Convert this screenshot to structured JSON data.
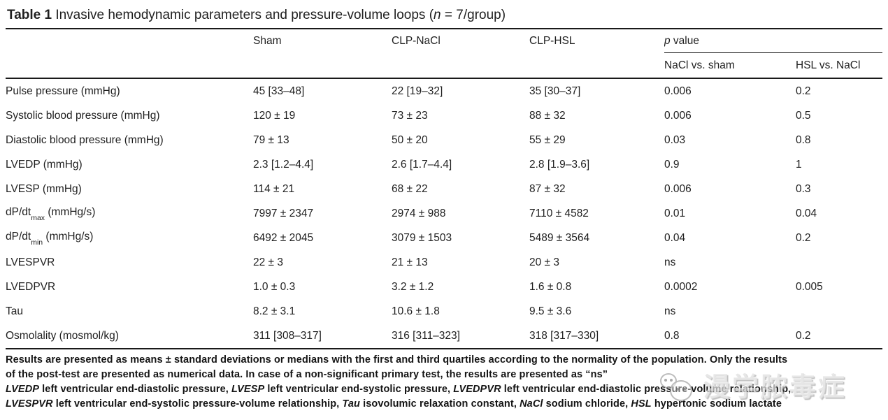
{
  "title": {
    "bold": "Table 1",
    "mid": " Invasive hemodynamic parameters and pressure-volume loops (",
    "n_italic": "n",
    "tail": " = 7/group)"
  },
  "header": {
    "col_sham": "Sham",
    "col_clp_nacl": "CLP-NaCl",
    "col_clp_hsl": "CLP-HSL",
    "p_italic": "p",
    "p_rest": " value",
    "sub_nacl_vs_sham": "NaCl vs. sham",
    "sub_hsl_vs_nacl": "HSL vs. NaCl"
  },
  "table": {
    "rows": [
      {
        "label": "Pulse pressure (mmHg)",
        "values": [
          "45 [33–48]",
          "22 [19–32]",
          "35 [30–37]",
          "0.006",
          "0.2"
        ]
      },
      {
        "label": "Systolic blood pressure (mmHg)",
        "values": [
          "120 ± 19",
          "73 ± 23",
          "88 ± 32",
          "0.006",
          "0.5"
        ]
      },
      {
        "label": "Diastolic blood pressure (mmHg)",
        "values": [
          "79 ± 13",
          "50 ± 20",
          "55 ± 29",
          "0.03",
          "0.8"
        ]
      },
      {
        "label": "LVEDP (mmHg)",
        "values": [
          "2.3 [1.2–4.4]",
          "2.6 [1.7–4.4]",
          "2.8 [1.9–3.6]",
          "0.9",
          "1"
        ]
      },
      {
        "label": "LVESP (mmHg)",
        "values": [
          "114 ± 21",
          "68 ± 22",
          "87 ± 32",
          "0.006",
          "0.3"
        ]
      },
      {
        "label": "dP/dt",
        "sub": "max",
        "label_after": " (mmHg/s)",
        "values": [
          "7997 ± 2347",
          "2974 ± 988",
          "7110 ± 4582",
          "0.01",
          "0.04"
        ]
      },
      {
        "label": "dP/dt",
        "sub": "min",
        "label_after": " (mmHg/s)",
        "values": [
          "6492 ± 2045",
          "3079 ± 1503",
          "5489 ± 3564",
          "0.04",
          "0.2"
        ]
      },
      {
        "label": "LVESPVR",
        "values": [
          "22 ± 3",
          "21 ± 13",
          "20 ± 3",
          "ns",
          ""
        ]
      },
      {
        "label": "LVEDPVR",
        "values": [
          "1.0 ± 0.3",
          "3.2 ± 1.2",
          "1.6 ± 0.8",
          "0.0002",
          "0.005"
        ]
      },
      {
        "label": "Tau",
        "values": [
          "8.2 ± 3.1",
          "10.6 ± 1.8",
          "9.5 ± 3.6",
          "ns",
          ""
        ]
      },
      {
        "label": "Osmolality (mosmol/kg)",
        "values": [
          "311 [308–317]",
          "316 [311–323]",
          "318 [317–330]",
          "0.8",
          "0.2"
        ]
      }
    ]
  },
  "footnote": {
    "lines": [
      [
        {
          "t": "Results are presented as means ± standard deviations or medians with the first and third quartiles according to the normality of the population. Only the results"
        }
      ],
      [
        {
          "t": "of the post-test are presented as numerical data. In case of a non-significant primary test, the results are presented as “ns”"
        }
      ],
      [
        {
          "t": "LVEDP",
          "i": 1
        },
        {
          "t": " left ventricular end-diastolic pressure, "
        },
        {
          "t": "LVESP",
          "i": 1
        },
        {
          "t": " left ventricular end-systolic pressure, "
        },
        {
          "t": "LVEDPVR",
          "i": 1
        },
        {
          "t": " left ventricular end-diastolic pressure-volume relationship,"
        }
      ],
      [
        {
          "t": "LVESPVR",
          "i": 1
        },
        {
          "t": " left ventricular end-systolic pressure-volume relationship, "
        },
        {
          "t": "Tau",
          "i": 1
        },
        {
          "t": " isovolumic relaxation constant, "
        },
        {
          "t": "NaCl",
          "i": 1
        },
        {
          "t": " sodium chloride, "
        },
        {
          "t": "HSL",
          "i": 1
        },
        {
          "t": " hypertonic sodium lactate"
        }
      ]
    ]
  },
  "watermark": {
    "text": "漫学脓毒症"
  },
  "colors": {
    "text": "#1f1f1f",
    "rule": "#1a1a1a",
    "watermark": "#c9c9c9",
    "background": "#ffffff"
  }
}
